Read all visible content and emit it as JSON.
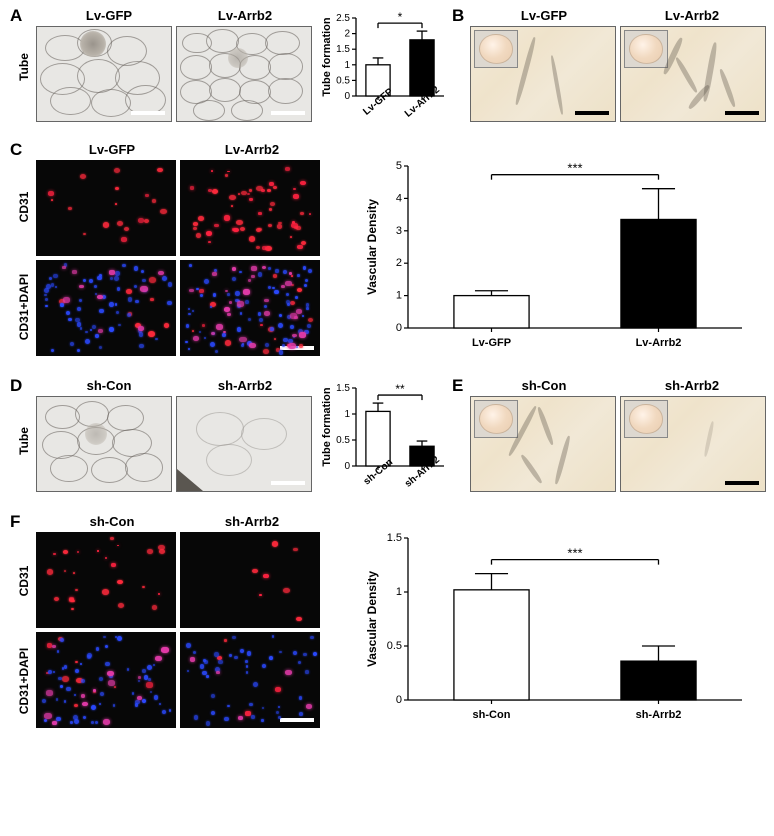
{
  "figure": {
    "font_label_pt": 17,
    "font_cond_pt": 13,
    "font_row_pt": 12,
    "panelA": {
      "label": "A",
      "conditions": [
        "Lv-GFP",
        "Lv-Arrb2"
      ],
      "row_label": "Tube",
      "img_bg": "#e8e6e2",
      "mesh_line_color": "rgba(100,95,90,0.55)",
      "chart": {
        "ylabel": "Tube formation",
        "ylim": [
          0,
          2.5
        ],
        "ytick_step": 0.5,
        "categories": [
          "Lv-GFP",
          "Lv-Arrb2"
        ],
        "values": [
          1.0,
          1.8
        ],
        "errors": [
          0.22,
          0.28
        ],
        "bar_fill": [
          "#ffffff",
          "#000000"
        ],
        "bar_width": 0.55,
        "sig_label": "*",
        "axis_fontsize": 10,
        "label_fontsize": 11,
        "tick_label_rotation": -45
      }
    },
    "panelB": {
      "label": "B",
      "conditions": [
        "Lv-GFP",
        "Lv-Arrb2"
      ],
      "histo_bg": "#efe3cb",
      "scalebar_color": "#000000"
    },
    "panelC": {
      "label": "C",
      "conditions": [
        "Lv-GFP",
        "Lv-Arrb2"
      ],
      "rows": [
        "CD31",
        "CD31+DAPI"
      ],
      "red": "#ff2a3c",
      "blue": "#2a49ff",
      "bg": "#070707",
      "scalebar_color": "#ffffff",
      "chart": {
        "ylabel": "Vascular Density",
        "ylim": [
          0,
          5.0
        ],
        "ytick_step": 1.0,
        "categories": [
          "Lv-GFP",
          "Lv-Arrb2"
        ],
        "values": [
          1.0,
          3.35
        ],
        "errors": [
          0.15,
          0.95
        ],
        "bar_fill": [
          "#ffffff",
          "#000000"
        ],
        "bar_width": 0.45,
        "sig_label": "***",
        "axis_fontsize": 11,
        "label_fontsize": 12
      }
    },
    "panelD": {
      "label": "D",
      "conditions": [
        "sh-Con",
        "sh-Arrb2"
      ],
      "row_label": "Tube",
      "chart": {
        "ylabel": "Tube formation",
        "ylim": [
          0,
          1.5
        ],
        "ytick_step": 0.5,
        "categories": [
          "sh-Con",
          "sh-Arrb2"
        ],
        "values": [
          1.05,
          0.38
        ],
        "errors": [
          0.16,
          0.1
        ],
        "bar_fill": [
          "#ffffff",
          "#000000"
        ],
        "bar_width": 0.55,
        "sig_label": "**",
        "axis_fontsize": 10,
        "label_fontsize": 11,
        "tick_label_rotation": -45
      }
    },
    "panelE": {
      "label": "E",
      "conditions": [
        "sh-Con",
        "sh-Arrb2"
      ],
      "scalebar_color": "#000000"
    },
    "panelF": {
      "label": "F",
      "conditions": [
        "sh-Con",
        "sh-Arrb2"
      ],
      "rows": [
        "CD31",
        "CD31+DAPI"
      ],
      "scalebar_color": "#ffffff",
      "chart": {
        "ylabel": "Vascular Density",
        "ylim": [
          0,
          1.5
        ],
        "ytick_step": 0.5,
        "categories": [
          "sh-Con",
          "sh-Arrb2"
        ],
        "values": [
          1.02,
          0.36
        ],
        "errors": [
          0.15,
          0.14
        ],
        "bar_fill": [
          "#ffffff",
          "#000000"
        ],
        "bar_width": 0.45,
        "sig_label": "***",
        "axis_fontsize": 11,
        "label_fontsize": 12
      }
    }
  }
}
